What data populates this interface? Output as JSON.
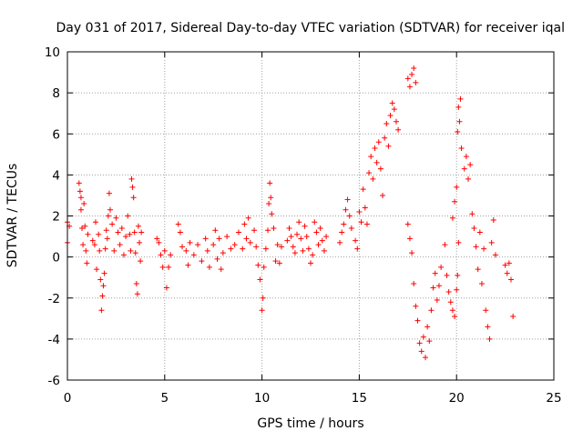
{
  "chart_data": {
    "type": "scatter",
    "title": "Day 031 of 2017, Sidereal Day-to-day VTEC variation (SDTVAR) for receiver iqal",
    "xlabel": "GPS time / hours",
    "ylabel": "SDTVAR / TECUs",
    "xlim": [
      0,
      25
    ],
    "ylim": [
      -6,
      10
    ],
    "xticks": [
      "0",
      "5",
      "10",
      "15",
      "20",
      "25"
    ],
    "yticks": [
      "-6",
      "-4",
      "-2",
      "0",
      "2",
      "4",
      "6",
      "8",
      "10"
    ],
    "grid": true,
    "marker": "+",
    "color": "#ff0000",
    "points": [
      [
        0.0,
        1.7
      ],
      [
        0.0,
        0.7
      ],
      [
        0.1,
        1.5
      ],
      [
        0.6,
        3.6
      ],
      [
        0.65,
        3.2
      ],
      [
        0.7,
        2.9
      ],
      [
        0.7,
        2.3
      ],
      [
        0.75,
        1.4
      ],
      [
        0.8,
        0.6
      ],
      [
        0.85,
        2.6
      ],
      [
        0.9,
        1.5
      ],
      [
        0.95,
        0.3
      ],
      [
        1.0,
        -0.3
      ],
      [
        1.05,
        1.1
      ],
      [
        1.3,
        0.8
      ],
      [
        1.4,
        0.6
      ],
      [
        1.45,
        1.7
      ],
      [
        1.5,
        -0.6
      ],
      [
        1.6,
        1.1
      ],
      [
        1.65,
        0.3
      ],
      [
        1.7,
        -1.1
      ],
      [
        1.75,
        -2.6
      ],
      [
        1.8,
        -1.9
      ],
      [
        1.85,
        -1.4
      ],
      [
        1.9,
        -0.8
      ],
      [
        1.95,
        0.4
      ],
      [
        2.0,
        1.3
      ],
      [
        2.05,
        0.9
      ],
      [
        2.1,
        2.0
      ],
      [
        2.15,
        3.1
      ],
      [
        2.2,
        2.3
      ],
      [
        2.3,
        1.6
      ],
      [
        2.4,
        0.3
      ],
      [
        2.5,
        1.9
      ],
      [
        2.6,
        1.2
      ],
      [
        2.7,
        0.6
      ],
      [
        2.8,
        1.4
      ],
      [
        2.9,
        0.1
      ],
      [
        3.0,
        1.0
      ],
      [
        3.1,
        2.0
      ],
      [
        3.2,
        1.1
      ],
      [
        3.25,
        0.3
      ],
      [
        3.3,
        3.8
      ],
      [
        3.35,
        3.4
      ],
      [
        3.4,
        2.9
      ],
      [
        3.45,
        1.2
      ],
      [
        3.5,
        0.2
      ],
      [
        3.55,
        -1.3
      ],
      [
        3.6,
        -1.8
      ],
      [
        3.65,
        1.5
      ],
      [
        3.7,
        0.7
      ],
      [
        3.75,
        -0.2
      ],
      [
        3.8,
        1.2
      ],
      [
        4.6,
        0.9
      ],
      [
        4.7,
        0.7
      ],
      [
        4.8,
        0.1
      ],
      [
        4.9,
        -0.5
      ],
      [
        5.0,
        0.3
      ],
      [
        5.1,
        -1.5
      ],
      [
        5.2,
        -0.5
      ],
      [
        5.3,
        0.1
      ],
      [
        5.7,
        1.6
      ],
      [
        5.8,
        1.2
      ],
      [
        5.9,
        0.5
      ],
      [
        6.1,
        0.3
      ],
      [
        6.2,
        -0.4
      ],
      [
        6.3,
        0.7
      ],
      [
        6.5,
        0.1
      ],
      [
        6.7,
        0.6
      ],
      [
        6.9,
        -0.2
      ],
      [
        7.1,
        0.9
      ],
      [
        7.2,
        0.3
      ],
      [
        7.3,
        -0.5
      ],
      [
        7.5,
        0.6
      ],
      [
        7.6,
        1.3
      ],
      [
        7.7,
        -0.1
      ],
      [
        7.8,
        0.9
      ],
      [
        7.9,
        -0.6
      ],
      [
        8.0,
        0.2
      ],
      [
        8.2,
        1.0
      ],
      [
        8.4,
        0.4
      ],
      [
        8.6,
        0.6
      ],
      [
        8.8,
        1.2
      ],
      [
        9.0,
        0.4
      ],
      [
        9.1,
        1.6
      ],
      [
        9.2,
        0.9
      ],
      [
        9.3,
        1.9
      ],
      [
        9.4,
        0.7
      ],
      [
        9.6,
        1.3
      ],
      [
        9.7,
        0.5
      ],
      [
        9.8,
        -0.4
      ],
      [
        9.9,
        -1.1
      ],
      [
        10.0,
        -2.6
      ],
      [
        10.05,
        -2.0
      ],
      [
        10.1,
        -0.5
      ],
      [
        10.2,
        0.4
      ],
      [
        10.3,
        1.3
      ],
      [
        10.35,
        2.6
      ],
      [
        10.4,
        3.6
      ],
      [
        10.45,
        2.9
      ],
      [
        10.5,
        2.1
      ],
      [
        10.6,
        1.4
      ],
      [
        10.7,
        -0.2
      ],
      [
        10.8,
        0.6
      ],
      [
        10.9,
        -0.3
      ],
      [
        11.0,
        0.5
      ],
      [
        11.3,
        0.8
      ],
      [
        11.4,
        1.4
      ],
      [
        11.5,
        1.0
      ],
      [
        11.6,
        0.5
      ],
      [
        11.7,
        0.2
      ],
      [
        11.8,
        1.1
      ],
      [
        11.9,
        1.7
      ],
      [
        12.0,
        0.9
      ],
      [
        12.1,
        0.3
      ],
      [
        12.2,
        1.5
      ],
      [
        12.3,
        1.0
      ],
      [
        12.4,
        0.4
      ],
      [
        12.5,
        -0.3
      ],
      [
        12.6,
        0.1
      ],
      [
        12.7,
        1.7
      ],
      [
        12.8,
        1.2
      ],
      [
        12.9,
        0.6
      ],
      [
        13.0,
        1.4
      ],
      [
        13.1,
        0.8
      ],
      [
        13.2,
        0.3
      ],
      [
        13.3,
        1.0
      ],
      [
        14.0,
        0.7
      ],
      [
        14.1,
        1.2
      ],
      [
        14.2,
        1.6
      ],
      [
        14.3,
        2.3
      ],
      [
        14.4,
        2.8
      ],
      [
        14.5,
        2.0
      ],
      [
        14.6,
        1.4
      ],
      [
        14.8,
        0.8
      ],
      [
        14.9,
        0.4
      ],
      [
        15.0,
        2.2
      ],
      [
        15.1,
        1.7
      ],
      [
        15.2,
        3.3
      ],
      [
        15.3,
        2.4
      ],
      [
        15.4,
        1.6
      ],
      [
        15.5,
        4.1
      ],
      [
        15.6,
        4.9
      ],
      [
        15.7,
        3.8
      ],
      [
        15.8,
        5.3
      ],
      [
        15.9,
        4.6
      ],
      [
        16.0,
        5.6
      ],
      [
        16.1,
        4.3
      ],
      [
        16.2,
        3.0
      ],
      [
        16.3,
        5.8
      ],
      [
        16.4,
        6.5
      ],
      [
        16.5,
        5.4
      ],
      [
        16.6,
        6.9
      ],
      [
        16.7,
        7.5
      ],
      [
        16.8,
        7.2
      ],
      [
        16.9,
        6.6
      ],
      [
        17.0,
        6.2
      ],
      [
        17.5,
        8.7
      ],
      [
        17.6,
        8.3
      ],
      [
        17.7,
        8.9
      ],
      [
        17.8,
        9.2
      ],
      [
        17.9,
        8.5
      ],
      [
        17.5,
        1.6
      ],
      [
        17.6,
        0.9
      ],
      [
        17.7,
        0.2
      ],
      [
        17.8,
        -1.3
      ],
      [
        17.9,
        -2.4
      ],
      [
        18.0,
        -3.1
      ],
      [
        18.1,
        -4.2
      ],
      [
        18.2,
        -4.6
      ],
      [
        18.3,
        -3.9
      ],
      [
        18.4,
        -4.9
      ],
      [
        18.5,
        -3.4
      ],
      [
        18.6,
        -4.1
      ],
      [
        18.7,
        -2.6
      ],
      [
        18.8,
        -1.5
      ],
      [
        18.9,
        -0.8
      ],
      [
        19.0,
        -2.1
      ],
      [
        19.1,
        -1.4
      ],
      [
        19.2,
        -0.5
      ],
      [
        19.4,
        0.6
      ],
      [
        19.5,
        -0.9
      ],
      [
        19.6,
        -1.7
      ],
      [
        19.7,
        -2.2
      ],
      [
        19.8,
        -2.6
      ],
      [
        19.9,
        -2.9
      ],
      [
        20.0,
        -1.6
      ],
      [
        20.05,
        -0.9
      ],
      [
        20.1,
        0.7
      ],
      [
        19.8,
        1.9
      ],
      [
        19.9,
        2.7
      ],
      [
        20.0,
        3.4
      ],
      [
        20.05,
        6.1
      ],
      [
        20.1,
        7.3
      ],
      [
        20.15,
        6.6
      ],
      [
        20.2,
        7.7
      ],
      [
        20.25,
        5.3
      ],
      [
        20.4,
        4.3
      ],
      [
        20.5,
        4.9
      ],
      [
        20.6,
        3.8
      ],
      [
        20.7,
        4.5
      ],
      [
        20.8,
        2.1
      ],
      [
        20.9,
        1.4
      ],
      [
        21.0,
        0.5
      ],
      [
        21.1,
        -0.6
      ],
      [
        21.2,
        1.2
      ],
      [
        21.3,
        -1.3
      ],
      [
        21.4,
        0.4
      ],
      [
        21.5,
        -2.6
      ],
      [
        21.6,
        -3.4
      ],
      [
        21.7,
        -4.0
      ],
      [
        21.8,
        0.7
      ],
      [
        21.9,
        1.8
      ],
      [
        22.0,
        0.1
      ],
      [
        22.5,
        -0.4
      ],
      [
        22.6,
        -0.8
      ],
      [
        22.7,
        -0.3
      ],
      [
        22.8,
        -1.1
      ],
      [
        22.9,
        -2.9
      ]
    ]
  }
}
